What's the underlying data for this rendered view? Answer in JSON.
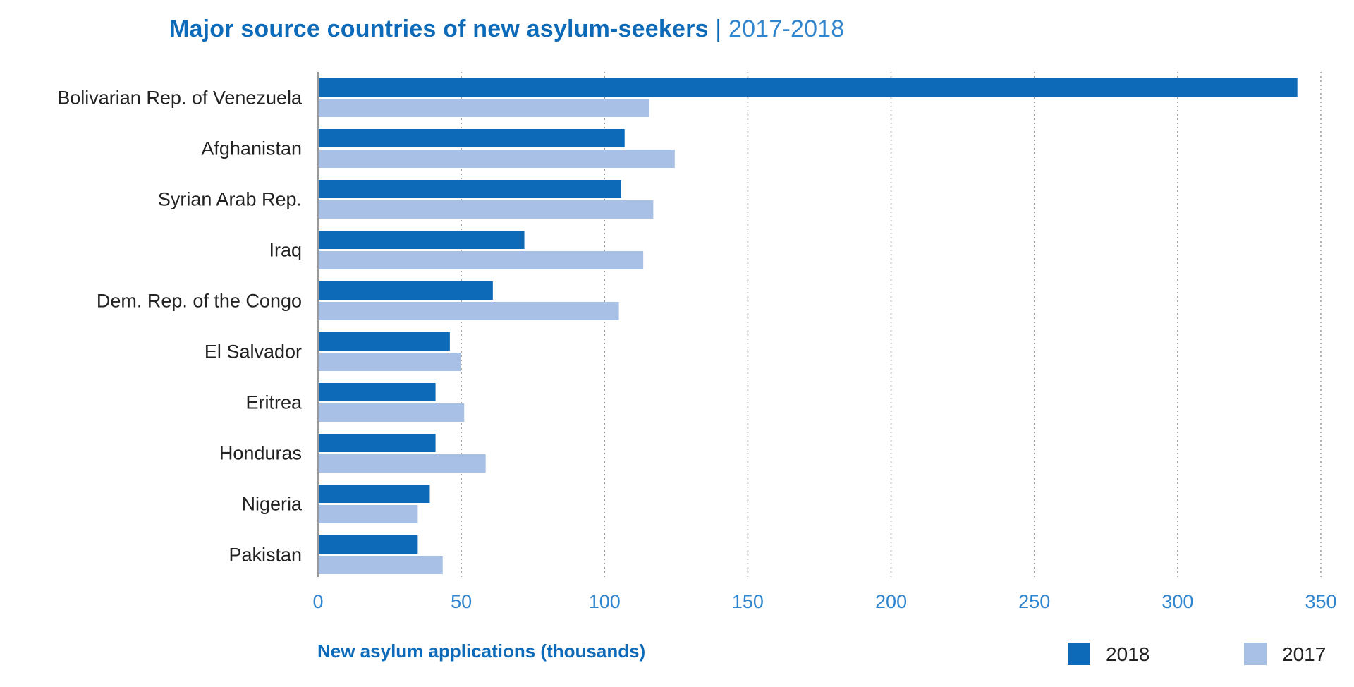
{
  "chart_data": {
    "type": "bar",
    "orientation": "horizontal",
    "title": "Major source countries of new asylum-seekers",
    "title_separator": "|",
    "subtitle": "2017-2018",
    "xlabel": "New asylum applications (thousands)",
    "ylabel": "",
    "xlim": [
      0,
      350
    ],
    "xticks": [
      0,
      50,
      100,
      150,
      200,
      250,
      300,
      350
    ],
    "grid": true,
    "legend_position": "bottom-right",
    "categories": [
      "Bolivarian Rep. of Venezuela",
      "Afghanistan",
      "Syrian Arab Rep.",
      "Iraq",
      "Dem. Rep. of the Congo",
      "El Salvador",
      "Eritrea",
      "Honduras",
      "Nigeria",
      "Pakistan"
    ],
    "series": [
      {
        "name": "2018",
        "color": "#0c6ab8",
        "values": [
          341.8,
          107.0,
          105.7,
          72.0,
          61.0,
          46.0,
          41.0,
          41.0,
          39.0,
          34.8
        ]
      },
      {
        "name": "2017",
        "color": "#a8bfe6",
        "values": [
          115.5,
          124.5,
          117.0,
          113.5,
          105.0,
          49.8,
          51.0,
          58.5,
          34.8,
          43.5
        ]
      }
    ]
  }
}
